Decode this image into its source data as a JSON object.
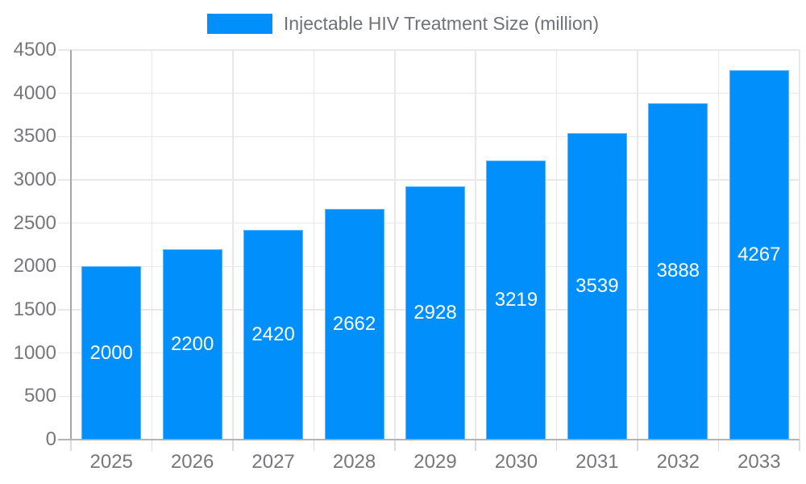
{
  "legend": {
    "label": "Injectable HIV Treatment Size (million)",
    "swatch_color": "#008FFB"
  },
  "chart_data": {
    "type": "bar",
    "title": "Injectable HIV Treatment Size (million)",
    "categories": [
      "2025",
      "2026",
      "2027",
      "2028",
      "2029",
      "2030",
      "2031",
      "2032",
      "2033"
    ],
    "series": [
      {
        "name": "Injectable HIV Treatment Size (million)",
        "values": [
          2000,
          2200,
          2420,
          2662,
          2928,
          3219,
          3539,
          3888,
          4267
        ]
      }
    ],
    "value_labels": [
      "2000",
      "2200",
      "2420",
      "2662",
      "2928",
      "3219",
      "3539",
      "3888",
      "4267"
    ],
    "xlabel": "",
    "ylabel": "",
    "ylim": [
      0,
      4500
    ],
    "yticks": [
      0,
      500,
      1000,
      1500,
      2000,
      2500,
      3000,
      3500,
      4000,
      4500
    ],
    "grid": true,
    "legend_position": "top",
    "bar_color": "#008FFB",
    "value_label_color": "#FFFFFF",
    "axis_label_color": "#76777A",
    "gridline_color": "#E8E8E8"
  }
}
